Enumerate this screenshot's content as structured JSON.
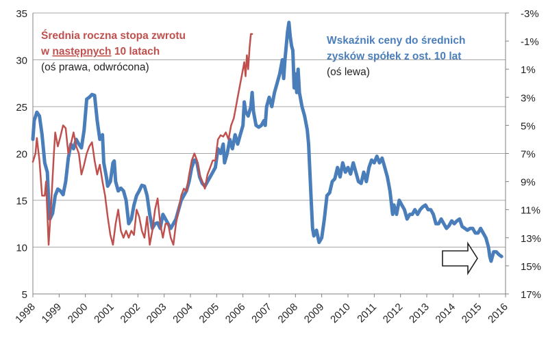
{
  "chart_data": {
    "type": "line",
    "x_range": [
      1998,
      2016
    ],
    "x_ticks": [
      "1998",
      "1999",
      "2000",
      "2001",
      "2002",
      "2003",
      "2004",
      "2005",
      "2006",
      "2007",
      "2008",
      "2009",
      "2010",
      "2011",
      "2012",
      "2013",
      "2014",
      "2015",
      "2016"
    ],
    "y_left": {
      "range": [
        5,
        35
      ],
      "ticks": [
        "5",
        "10",
        "15",
        "20",
        "25",
        "30",
        "35"
      ]
    },
    "y_right": {
      "inverted": true,
      "range_percent": [
        -3,
        17
      ],
      "ticks": [
        "-3%",
        "-1%",
        "1%",
        "3%",
        "5%",
        "7%",
        "9%",
        "11%",
        "13%",
        "15%",
        "17%"
      ]
    },
    "grid": "horizontal",
    "annotations": {
      "red_title_line1": "Średnia roczna stopa zwrotu",
      "red_title_line2_prefix": "w ",
      "red_title_line2_underlined": "następnych",
      "red_title_line2_suffix": " 10 latach",
      "red_axis_note": "(oś prawa, odwrócona)",
      "blue_title_line1": "Wskaźnik ceny do średnich",
      "blue_title_line2": "zysków spółek z ost. 10 lat",
      "blue_axis_note": "(oś lewa)"
    },
    "colors": {
      "blue": "#4a7ebb",
      "red": "#c0504d",
      "grid": "#a6a6a6",
      "text_dark": "#222222"
    },
    "series": [
      {
        "axis": "left",
        "color": "#4a7ebb",
        "points": [
          [
            1998.0,
            21.5
          ],
          [
            1998.05,
            23.5
          ],
          [
            1998.15,
            24.4
          ],
          [
            1998.25,
            24.0
          ],
          [
            1998.35,
            22.0
          ],
          [
            1998.45,
            19.0
          ],
          [
            1998.55,
            18.0
          ],
          [
            1998.6,
            15.0
          ],
          [
            1998.65,
            13.0
          ],
          [
            1998.75,
            13.6
          ],
          [
            1998.85,
            15.5
          ],
          [
            1998.95,
            16.2
          ],
          [
            1999.05,
            16.0
          ],
          [
            1999.15,
            15.6
          ],
          [
            1999.25,
            17.0
          ],
          [
            1999.35,
            19.5
          ],
          [
            1999.45,
            21.0
          ],
          [
            1999.55,
            20.5
          ],
          [
            1999.65,
            21.5
          ],
          [
            1999.75,
            21.0
          ],
          [
            1999.85,
            20.6
          ],
          [
            1999.95,
            22.5
          ],
          [
            2000.05,
            25.8
          ],
          [
            2000.15,
            26.0
          ],
          [
            2000.25,
            26.3
          ],
          [
            2000.35,
            26.2
          ],
          [
            2000.45,
            23.5
          ],
          [
            2000.55,
            21.5
          ],
          [
            2000.65,
            22.0
          ],
          [
            2000.7,
            19.0
          ],
          [
            2000.8,
            17.5
          ],
          [
            2000.85,
            16.5
          ],
          [
            2000.95,
            17.0
          ],
          [
            2001.05,
            19.0
          ],
          [
            2001.1,
            19.2
          ],
          [
            2001.15,
            17.0
          ],
          [
            2001.25,
            16.0
          ],
          [
            2001.35,
            16.3
          ],
          [
            2001.45,
            16.0
          ],
          [
            2001.55,
            15.0
          ],
          [
            2001.65,
            12.5
          ],
          [
            2001.75,
            13.0
          ],
          [
            2001.85,
            14.5
          ],
          [
            2001.95,
            15.5
          ],
          [
            2002.05,
            16.0
          ],
          [
            2002.15,
            16.6
          ],
          [
            2002.25,
            16.5
          ],
          [
            2002.35,
            15.5
          ],
          [
            2002.45,
            13.5
          ],
          [
            2002.55,
            12.0
          ],
          [
            2002.65,
            12.5
          ],
          [
            2002.75,
            12.6
          ],
          [
            2002.85,
            12.0
          ],
          [
            2002.95,
            13.5
          ],
          [
            2003.05,
            13.0
          ],
          [
            2003.15,
            12.5
          ],
          [
            2003.25,
            12.0
          ],
          [
            2003.35,
            12.5
          ],
          [
            2003.45,
            13.0
          ],
          [
            2003.55,
            14.0
          ],
          [
            2003.65,
            15.0
          ],
          [
            2003.75,
            15.5
          ],
          [
            2003.85,
            16.0
          ],
          [
            2003.95,
            17.0
          ],
          [
            2004.05,
            18.5
          ],
          [
            2004.15,
            19.3
          ],
          [
            2004.25,
            19.0
          ],
          [
            2004.35,
            17.5
          ],
          [
            2004.45,
            16.8
          ],
          [
            2004.55,
            16.5
          ],
          [
            2004.65,
            17.0
          ],
          [
            2004.75,
            17.5
          ],
          [
            2004.85,
            18.0
          ],
          [
            2004.95,
            18.5
          ],
          [
            2005.05,
            20.5
          ],
          [
            2005.15,
            20.0
          ],
          [
            2005.25,
            21.0
          ],
          [
            2005.3,
            19.0
          ],
          [
            2005.4,
            20.0
          ],
          [
            2005.5,
            21.5
          ],
          [
            2005.6,
            20.5
          ],
          [
            2005.7,
            22.0
          ],
          [
            2005.8,
            21.0
          ],
          [
            2005.9,
            22.0
          ],
          [
            2006.0,
            23.0
          ],
          [
            2006.05,
            25.5
          ],
          [
            2006.1,
            24.5
          ],
          [
            2006.2,
            24.0
          ],
          [
            2006.3,
            25.0
          ],
          [
            2006.35,
            26.5
          ],
          [
            2006.4,
            24.5
          ],
          [
            2006.5,
            23.0
          ],
          [
            2006.6,
            22.8
          ],
          [
            2006.7,
            23.0
          ],
          [
            2006.8,
            23.5
          ],
          [
            2006.85,
            23.0
          ],
          [
            2006.9,
            25.0
          ],
          [
            2007.0,
            26.0
          ],
          [
            2007.1,
            25.0
          ],
          [
            2007.2,
            26.5
          ],
          [
            2007.3,
            27.5
          ],
          [
            2007.4,
            28.5
          ],
          [
            2007.5,
            30.0
          ],
          [
            2007.55,
            28.0
          ],
          [
            2007.6,
            30.0
          ],
          [
            2007.7,
            33.0
          ],
          [
            2007.75,
            34.0
          ],
          [
            2007.8,
            32.5
          ],
          [
            2007.85,
            31.5
          ],
          [
            2007.9,
            31.0
          ],
          [
            2007.95,
            27.0
          ],
          [
            2008.0,
            28.5
          ],
          [
            2008.05,
            26.5
          ],
          [
            2008.1,
            29.0
          ],
          [
            2008.15,
            26.5
          ],
          [
            2008.25,
            25.0
          ],
          [
            2008.35,
            24.0
          ],
          [
            2008.45,
            22.5
          ],
          [
            2008.5,
            21.0
          ],
          [
            2008.55,
            18.0
          ],
          [
            2008.6,
            15.0
          ],
          [
            2008.65,
            12.0
          ],
          [
            2008.7,
            11.2
          ],
          [
            2008.8,
            11.8
          ],
          [
            2008.9,
            10.5
          ],
          [
            2009.0,
            11.0
          ],
          [
            2009.1,
            13.0
          ],
          [
            2009.2,
            15.5
          ],
          [
            2009.3,
            15.8
          ],
          [
            2009.4,
            17.0
          ],
          [
            2009.5,
            17.3
          ],
          [
            2009.6,
            18.5
          ],
          [
            2009.7,
            17.5
          ],
          [
            2009.8,
            19.0
          ],
          [
            2009.9,
            18.0
          ],
          [
            2010.0,
            18.5
          ],
          [
            2010.1,
            17.8
          ],
          [
            2010.2,
            19.0
          ],
          [
            2010.3,
            18.0
          ],
          [
            2010.4,
            17.0
          ],
          [
            2010.5,
            16.8
          ],
          [
            2010.6,
            18.0
          ],
          [
            2010.7,
            17.0
          ],
          [
            2010.8,
            18.5
          ],
          [
            2010.9,
            19.3
          ],
          [
            2011.0,
            19.0
          ],
          [
            2011.1,
            19.7
          ],
          [
            2011.2,
            19.0
          ],
          [
            2011.3,
            19.5
          ],
          [
            2011.4,
            18.5
          ],
          [
            2011.5,
            17.5
          ],
          [
            2011.6,
            16.0
          ],
          [
            2011.7,
            13.5
          ],
          [
            2011.75,
            14.5
          ],
          [
            2011.85,
            13.5
          ],
          [
            2011.95,
            15.0
          ],
          [
            2012.05,
            14.5
          ],
          [
            2012.15,
            14.0
          ],
          [
            2012.25,
            13.0
          ],
          [
            2012.35,
            13.5
          ],
          [
            2012.45,
            13.5
          ],
          [
            2012.55,
            14.0
          ],
          [
            2012.65,
            13.5
          ],
          [
            2012.75,
            14.0
          ],
          [
            2012.85,
            14.3
          ],
          [
            2012.95,
            14.5
          ],
          [
            2013.05,
            14.0
          ],
          [
            2013.15,
            14.0
          ],
          [
            2013.25,
            13.5
          ],
          [
            2013.35,
            12.5
          ],
          [
            2013.45,
            12.5
          ],
          [
            2013.55,
            13.0
          ],
          [
            2013.65,
            12.5
          ],
          [
            2013.75,
            12.0
          ],
          [
            2013.85,
            12.3
          ],
          [
            2013.95,
            12.8
          ],
          [
            2014.05,
            12.5
          ],
          [
            2014.15,
            12.8
          ],
          [
            2014.25,
            13.0
          ],
          [
            2014.35,
            12.2
          ],
          [
            2014.45,
            12.0
          ],
          [
            2014.55,
            11.8
          ],
          [
            2014.65,
            12.0
          ],
          [
            2014.75,
            12.0
          ],
          [
            2014.85,
            11.5
          ],
          [
            2014.95,
            11.5
          ],
          [
            2015.05,
            12.0
          ],
          [
            2015.15,
            11.5
          ],
          [
            2015.25,
            11.0
          ],
          [
            2015.35,
            10.0
          ],
          [
            2015.4,
            9.0
          ],
          [
            2015.45,
            8.5
          ],
          [
            2015.55,
            9.5
          ],
          [
            2015.65,
            9.5
          ],
          [
            2015.75,
            9.2
          ],
          [
            2015.85,
            9.0
          ]
        ]
      },
      {
        "axis": "right",
        "color": "#c0504d",
        "points": [
          [
            1998.0,
            7.6
          ],
          [
            1998.1,
            7.0
          ],
          [
            1998.15,
            5.9
          ],
          [
            1998.25,
            7.5
          ],
          [
            1998.35,
            10.0
          ],
          [
            1998.45,
            10.0
          ],
          [
            1998.5,
            9.0
          ],
          [
            1998.6,
            13.5
          ],
          [
            1998.7,
            10.5
          ],
          [
            1998.8,
            7.0
          ],
          [
            1998.85,
            5.5
          ],
          [
            1998.95,
            6.5
          ],
          [
            1999.05,
            5.8
          ],
          [
            1999.15,
            5.0
          ],
          [
            1999.25,
            5.2
          ],
          [
            1999.35,
            7.0
          ],
          [
            1999.45,
            6.3
          ],
          [
            1999.55,
            5.5
          ],
          [
            1999.65,
            6.5
          ],
          [
            1999.75,
            7.0
          ],
          [
            1999.85,
            8.5
          ],
          [
            1999.95,
            7.8
          ],
          [
            2000.05,
            7.0
          ],
          [
            2000.15,
            6.5
          ],
          [
            2000.25,
            6.2
          ],
          [
            2000.35,
            7.5
          ],
          [
            2000.45,
            8.5
          ],
          [
            2000.55,
            7.8
          ],
          [
            2000.65,
            9.0
          ],
          [
            2000.75,
            10.0
          ],
          [
            2000.85,
            11.5
          ],
          [
            2000.95,
            12.8
          ],
          [
            2001.05,
            13.5
          ],
          [
            2001.15,
            12.0
          ],
          [
            2001.25,
            11.0
          ],
          [
            2001.35,
            12.5
          ],
          [
            2001.45,
            13.0
          ],
          [
            2001.55,
            12.5
          ],
          [
            2001.65,
            13.0
          ],
          [
            2001.75,
            12.5
          ],
          [
            2001.85,
            12.8
          ],
          [
            2001.95,
            11.0
          ],
          [
            2002.05,
            11.5
          ],
          [
            2002.15,
            12.5
          ],
          [
            2002.25,
            13.0
          ],
          [
            2002.35,
            11.5
          ],
          [
            2002.45,
            13.5
          ],
          [
            2002.55,
            12.5
          ],
          [
            2002.65,
            11.0
          ],
          [
            2002.75,
            10.2
          ],
          [
            2002.85,
            12.0
          ],
          [
            2002.95,
            13.0
          ],
          [
            2003.05,
            12.0
          ],
          [
            2003.15,
            12.0
          ],
          [
            2003.25,
            13.0
          ],
          [
            2003.35,
            13.5
          ],
          [
            2003.45,
            12.0
          ],
          [
            2003.55,
            11.0
          ],
          [
            2003.65,
            10.0
          ],
          [
            2003.75,
            9.5
          ],
          [
            2003.85,
            9.7
          ],
          [
            2003.95,
            8.5
          ],
          [
            2004.05,
            7.5
          ],
          [
            2004.15,
            7.0
          ],
          [
            2004.25,
            7.5
          ],
          [
            2004.35,
            8.5
          ],
          [
            2004.45,
            9.0
          ],
          [
            2004.55,
            9.5
          ],
          [
            2004.65,
            8.5
          ],
          [
            2004.75,
            8.0
          ],
          [
            2004.85,
            7.5
          ],
          [
            2004.95,
            7.5
          ],
          [
            2005.05,
            6.0
          ],
          [
            2005.15,
            5.7
          ],
          [
            2005.25,
            5.8
          ],
          [
            2005.35,
            5.5
          ],
          [
            2005.45,
            6.0
          ],
          [
            2005.55,
            5.0
          ],
          [
            2005.65,
            4.5
          ],
          [
            2005.75,
            3.5
          ],
          [
            2005.85,
            2.5
          ],
          [
            2005.95,
            1.5
          ],
          [
            2006.05,
            0.5
          ],
          [
            2006.1,
            1.5
          ],
          [
            2006.15,
            0.0
          ],
          [
            2006.2,
            1.0
          ],
          [
            2006.25,
            -0.5
          ],
          [
            2006.3,
            -1.5
          ],
          [
            2006.35,
            -1.5
          ]
        ]
      }
    ]
  }
}
